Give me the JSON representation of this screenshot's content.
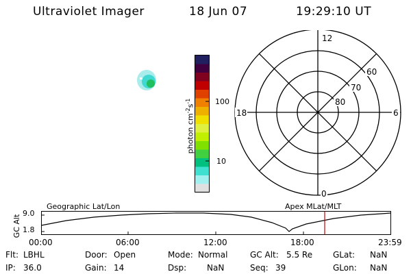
{
  "header": {
    "instrument": "Ultraviolet Imager",
    "date": "18 Jun 07",
    "time": "19:29:10 UT"
  },
  "colorbar": {
    "unit_label": "photon cm",
    "unit_sup1": "-2",
    "unit_mid": "s",
    "unit_sup2": "-1",
    "ticks": [
      "100",
      "10"
    ],
    "colors": [
      "#202060",
      "#400040",
      "#800020",
      "#c00000",
      "#e04000",
      "#f08000",
      "#f0b000",
      "#f0e000",
      "#e0f040",
      "#c0f000",
      "#80e000",
      "#40d040",
      "#00c080",
      "#40e0d0",
      "#a0f0f0",
      "#e0e0e0"
    ]
  },
  "polar": {
    "mlt_labels": [
      "12",
      "18",
      "6",
      "0"
    ],
    "lat_labels": [
      "60",
      "70",
      "80"
    ]
  },
  "timeline": {
    "left_title": "Geographic Lat/Lon",
    "right_title": "Apex  MLat/MLT",
    "axis_title": "GC Alt",
    "y_ticks": [
      "9.0",
      "1.8"
    ],
    "x_ticks": [
      "00:00",
      "06:00",
      "12:00",
      "18:00",
      "23:59"
    ],
    "cursor_time": "19:29",
    "cursor_color": "#c00000"
  },
  "status": {
    "flt_label": "Flt:",
    "flt_value": "LBHL",
    "ip_label": "IP:",
    "ip_value": "36.0",
    "door_label": "Door:",
    "door_value": "Open",
    "gain_label": "Gain:",
    "gain_value": "14",
    "mode_label": "Mode:",
    "mode_value": "Normal",
    "dsp_label": "Dsp:",
    "dsp_value": "NaN",
    "gcalt_label": "GC Alt:",
    "gcalt_value": "5.5 Re",
    "seq_label": "Seq:",
    "seq_value": "39",
    "glat_label": "GLat:",
    "glat_value": "NaN",
    "glon_label": "GLon:",
    "glon_value": "NaN"
  }
}
